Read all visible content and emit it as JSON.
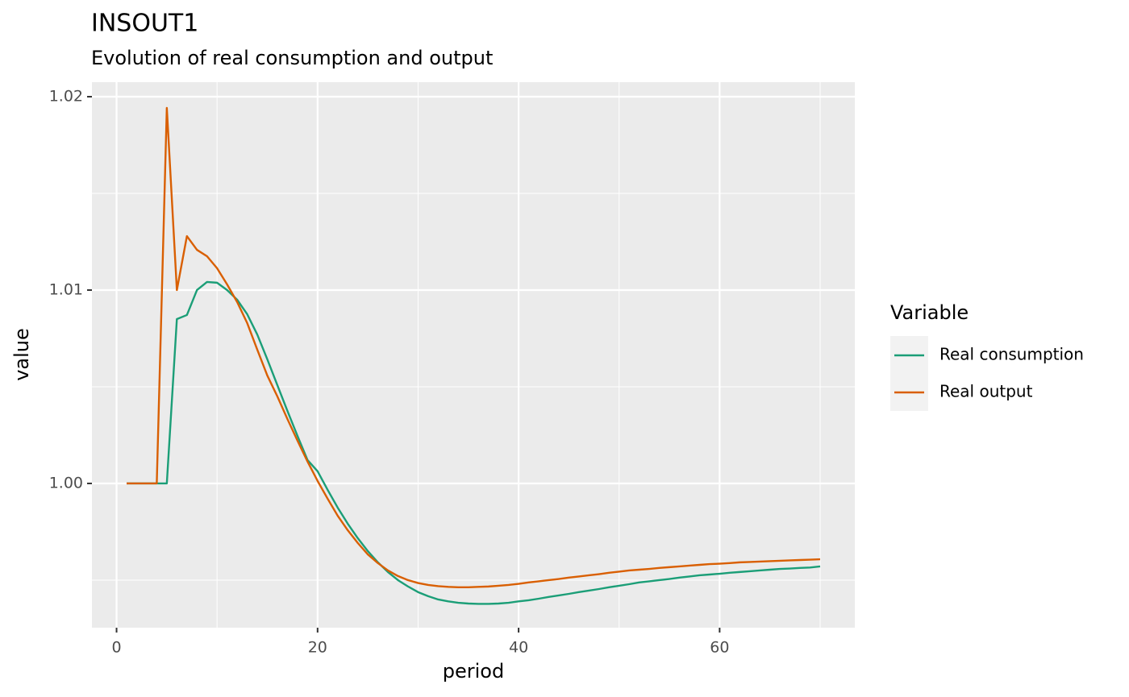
{
  "chart_data": {
    "type": "line",
    "title": "INSOUT1",
    "subtitle": "Evolution of real consumption and output",
    "x_label": "period",
    "y_label": "value",
    "legend_title": "Variable",
    "legend_position": "right",
    "grid": true,
    "x": [
      1,
      2,
      3,
      4,
      5,
      6,
      7,
      8,
      9,
      10,
      11,
      12,
      13,
      14,
      15,
      16,
      17,
      18,
      19,
      20,
      21,
      22,
      23,
      24,
      25,
      26,
      27,
      28,
      29,
      30,
      31,
      32,
      33,
      34,
      35,
      36,
      37,
      38,
      39,
      40,
      41,
      42,
      43,
      44,
      45,
      46,
      47,
      48,
      49,
      50,
      51,
      52,
      53,
      54,
      55,
      56,
      57,
      58,
      59,
      60,
      61,
      62,
      63,
      64,
      65,
      66,
      67,
      68,
      69,
      70
    ],
    "series": [
      {
        "name": "Real consumption",
        "color": "#1b9e77",
        "values": [
          1,
          1,
          1,
          1,
          1,
          1.0085,
          1.00871,
          1.01,
          1.01042,
          1.01038,
          1.01,
          1.0095,
          1.00875,
          1.0077,
          1.00642,
          1.00508,
          1.00375,
          1.00246,
          1.00121,
          1.00063,
          0.99967,
          0.99875,
          0.99792,
          0.99717,
          0.9965,
          0.99592,
          0.99542,
          0.995,
          0.99467,
          0.99438,
          0.99417,
          0.994,
          0.9939,
          0.99383,
          0.99379,
          0.99377,
          0.99377,
          0.99379,
          0.99383,
          0.9939,
          0.99396,
          0.99404,
          0.99413,
          0.99421,
          0.99429,
          0.99438,
          0.99446,
          0.99454,
          0.99463,
          0.99471,
          0.99479,
          0.99488,
          0.99494,
          0.995,
          0.99506,
          0.99513,
          0.99519,
          0.99525,
          0.99529,
          0.99533,
          0.99538,
          0.99542,
          0.99546,
          0.9955,
          0.99554,
          0.99558,
          0.9956,
          0.99563,
          0.99565,
          0.99571
        ]
      },
      {
        "name": "Real output",
        "color": "#d95f02",
        "values": [
          1,
          1,
          1,
          1,
          1.01942,
          1.01,
          1.01279,
          1.01208,
          1.01175,
          1.01113,
          1.01029,
          1.00938,
          1.00829,
          1.00692,
          1.00558,
          1.0045,
          1.00333,
          1.00221,
          1.00113,
          1.00013,
          0.99921,
          0.99833,
          0.99758,
          0.99692,
          0.99633,
          0.99588,
          0.9955,
          0.99521,
          0.995,
          0.99485,
          0.99475,
          0.99469,
          0.99465,
          0.99463,
          0.99463,
          0.99465,
          0.99467,
          0.99471,
          0.99475,
          0.99481,
          0.99488,
          0.99494,
          0.995,
          0.99506,
          0.99513,
          0.99519,
          0.99525,
          0.99531,
          0.99538,
          0.99544,
          0.9955,
          0.99554,
          0.99558,
          0.99563,
          0.99567,
          0.99571,
          0.99575,
          0.99579,
          0.99583,
          0.99585,
          0.99588,
          0.99592,
          0.99594,
          0.99596,
          0.99598,
          0.996,
          0.99602,
          0.99604,
          0.99606,
          0.99608
        ]
      }
    ],
    "xlim": [
      -2.45,
      73.45
    ],
    "xticks": [
      0,
      20,
      40,
      60
    ],
    "ylim": [
      0.99254,
      1.02075
    ],
    "yticks": [
      {
        "value": 1,
        "label": "1.00"
      },
      1.01,
      1.02
    ]
  }
}
